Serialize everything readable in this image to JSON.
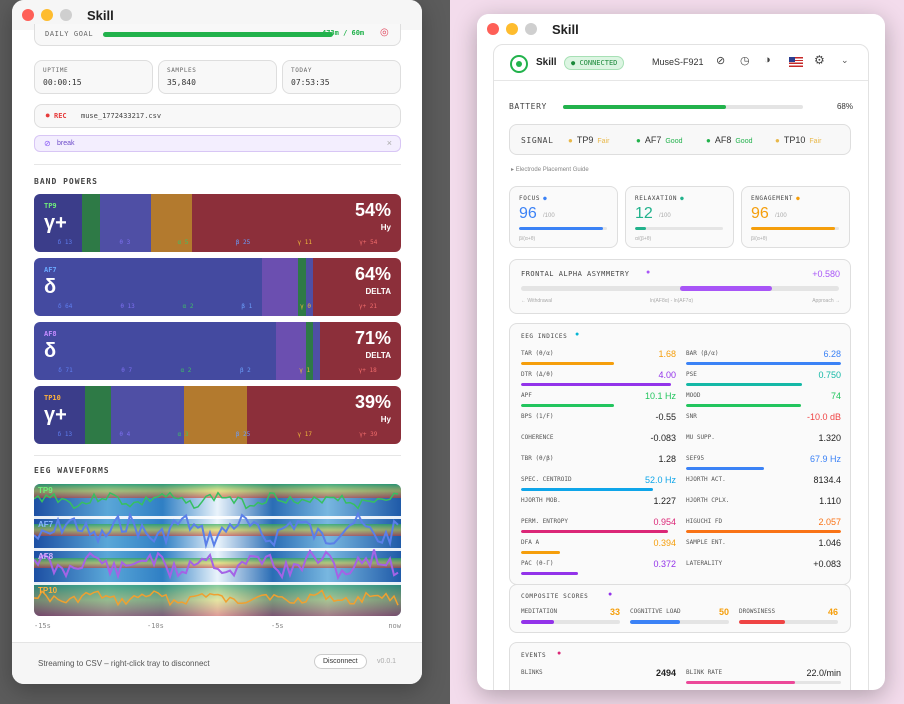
{
  "left_window": {
    "title": "Skill",
    "daily_goal": {
      "label": "DAILY GOAL",
      "value": "473m / 60m",
      "progress": 1.0
    },
    "stats": [
      {
        "label": "UPTIME",
        "value": "00:00:15"
      },
      {
        "label": "SAMPLES",
        "value": "35,840"
      },
      {
        "label": "TODAY",
        "value": "07:53:35"
      }
    ],
    "rec": {
      "label": "REC",
      "file": "muse_1772433217.csv"
    },
    "tag": {
      "label": "break",
      "close": "×"
    },
    "band_powers_title": "BAND POWERS",
    "bands": [
      {
        "channel": "TP9",
        "symbol": "γ+",
        "percent": "54%",
        "sub": "Hy",
        "name_color": "#6ff07a",
        "ticks": [
          "δ 13",
          "θ 3",
          "α 5",
          "β 25",
          "γ 11",
          "γ+ 54"
        ]
      },
      {
        "channel": "AF7",
        "symbol": "δ",
        "percent": "64%",
        "sub": "DELTA",
        "name_color": "#6aa8ff",
        "ticks": [
          "δ 64",
          "θ 13",
          "α 2",
          "β 1",
          "γ 0",
          "γ+ 21"
        ]
      },
      {
        "channel": "AF8",
        "symbol": "δ",
        "percent": "71%",
        "sub": "DELTA",
        "name_color": "#c38bff",
        "ticks": [
          "δ 71",
          "θ 7",
          "α 2",
          "β 2",
          "γ 1",
          "γ+ 18"
        ]
      },
      {
        "channel": "TP10",
        "symbol": "γ+",
        "percent": "39%",
        "sub": "Hy",
        "name_color": "#ffb13b",
        "ticks": [
          "δ 13",
          "θ 4",
          "α 3",
          "β 25",
          "γ 17",
          "γ+ 39"
        ]
      }
    ],
    "waveforms_title": "EEG WAVEFORMS",
    "wave_channels": [
      "TP9",
      "AF7",
      "AF8",
      "TP10"
    ],
    "time_axis": [
      "-15s",
      "-10s",
      "-5s",
      "now"
    ],
    "footer": {
      "status": "Streaming to CSV – right-click tray to disconnect",
      "disconnect": "Disconnect",
      "version": "v0.0.1"
    }
  },
  "right_window": {
    "title": "Skill",
    "header": {
      "app": "Skill",
      "status": "CONNECTED",
      "device": "MuseS-F921"
    },
    "battery": {
      "label": "BATTERY",
      "value": "68%",
      "level": 0.68
    },
    "signal": {
      "label": "SIGNAL",
      "channels": [
        {
          "name": "TP9",
          "quality": "Fair",
          "color": "#e8b84a"
        },
        {
          "name": "AF7",
          "quality": "Good",
          "color": "#22b24c"
        },
        {
          "name": "AF8",
          "quality": "Good",
          "color": "#22b24c"
        },
        {
          "name": "TP10",
          "quality": "Fair",
          "color": "#e8b84a"
        }
      ]
    },
    "electrode_guide": "Electrode Placement Guide",
    "metrics": [
      {
        "label": "FOCUS",
        "value": "96",
        "scale": "/100",
        "formula": "β/(α+θ)",
        "color": "#3b82f6",
        "level": 0.96
      },
      {
        "label": "RELAXATION",
        "value": "12",
        "scale": "/100",
        "formula": "α/(β+θ)",
        "color": "#22b28c",
        "level": 0.12
      },
      {
        "label": "ENGAGEMENT",
        "value": "96",
        "scale": "/100",
        "formula": "β/(α+θ)",
        "color": "#f59e0b",
        "level": 0.96
      }
    ],
    "faa": {
      "label": "FRONTAL ALPHA ASYMMETRY",
      "value": "+0.580",
      "left": "← Withdrawal",
      "middle": "ln(AF8α) - ln(AF7α)",
      "right": "Approach →"
    },
    "eeg_indices_title": "EEG INDICES",
    "indices": [
      {
        "name": "TAR (θ/α)",
        "value": "1.68",
        "color": "#f59e0b",
        "level": 0.6
      },
      {
        "name": "BAR (β/α)",
        "value": "6.28",
        "color": "#3b82f6",
        "level": 1.0
      },
      {
        "name": "DTR (Δ/θ)",
        "value": "4.00",
        "color": "#9333ea",
        "level": 0.97
      },
      {
        "name": "PSE",
        "value": "0.750",
        "color": "#14b8a6",
        "level": 0.75
      },
      {
        "name": "APF",
        "value": "10.1 Hz",
        "color": "#22c55e",
        "level": 0.6
      },
      {
        "name": "MOOD",
        "value": "74",
        "color": "#22c55e",
        "level": 0.74
      },
      {
        "name": "BPS (1/F)",
        "value": "-0.55",
        "color": "#9ca3af",
        "level": 0
      },
      {
        "name": "SNR",
        "value": "-10.0 dB",
        "color": "#ef4444",
        "level": 0
      },
      {
        "name": "COHERENCE",
        "value": "-0.083",
        "color": "#9ca3af",
        "level": 0
      },
      {
        "name": "MU SUPP.",
        "value": "1.320",
        "color": "#9ca3af",
        "level": 0
      },
      {
        "name": "TBR (θ/β)",
        "value": "1.28",
        "color": "#9ca3af",
        "level": 0
      },
      {
        "name": "SEF95",
        "value": "67.9 Hz",
        "color": "#3b82f6",
        "level": 0.5
      },
      {
        "name": "SPEC. CENTROID",
        "value": "52.0 Hz",
        "color": "#0ea5e9",
        "level": 0.85
      },
      {
        "name": "HJORTH ACT.",
        "value": "8134.4",
        "color": "#9ca3af",
        "level": 0
      },
      {
        "name": "HJORTH MOB.",
        "value": "1.227",
        "color": "#9ca3af",
        "level": 0
      },
      {
        "name": "HJORTH CPLX.",
        "value": "1.110",
        "color": "#9ca3af",
        "level": 0
      },
      {
        "name": "PERM. ENTROPY",
        "value": "0.954",
        "color": "#db2777",
        "level": 0.95
      },
      {
        "name": "HIGUCHI FD",
        "value": "2.057",
        "color": "#f97316",
        "level": 1.0
      },
      {
        "name": "DFA A",
        "value": "0.394",
        "color": "#f59e0b",
        "level": 0.25
      },
      {
        "name": "SAMPLE ENT.",
        "value": "1.046",
        "color": "#9ca3af",
        "level": 0
      },
      {
        "name": "PAC (θ-Γ)",
        "value": "0.372",
        "color": "#9333ea",
        "level": 0.37
      },
      {
        "name": "LATERALITY",
        "value": "+0.083",
        "color": "#9ca3af",
        "level": 0
      }
    ],
    "composite_title": "COMPOSITE SCORES",
    "composite": [
      {
        "name": "MEDITATION",
        "value": "33",
        "color": "#9333ea",
        "level": 0.33,
        "value_color": "#f59e0b"
      },
      {
        "name": "COGNITIVE LOAD",
        "value": "50",
        "color": "#3b82f6",
        "level": 0.5,
        "value_color": "#f59e0b"
      },
      {
        "name": "DROWSINESS",
        "value": "46",
        "color": "#ef4444",
        "level": 0.46,
        "value_color": "#f59e0b"
      }
    ],
    "events_title": "EVENTS",
    "events": [
      {
        "name": "BLINKS",
        "value": "2494"
      },
      {
        "name": "BLINK RATE",
        "value": "22.0/min"
      }
    ],
    "accents": {
      "connected": "#22b24c",
      "focus": "#3b82f6",
      "faa": "#a855f7"
    }
  }
}
